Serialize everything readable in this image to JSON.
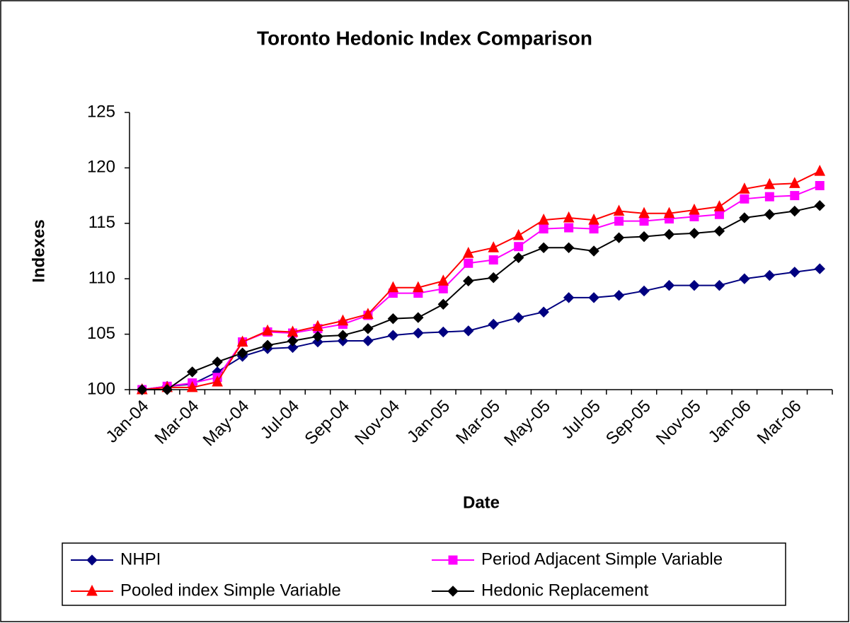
{
  "chart_data": {
    "type": "line",
    "title": "Toronto Hedonic Index Comparison",
    "x_label": "Date",
    "y_label": "Indexes",
    "categories": [
      "Jan-04",
      null,
      "Mar-04",
      null,
      "May-04",
      null,
      "Jul-04",
      null,
      "Sep-04",
      null,
      "Nov-04",
      null,
      "Jan-05",
      null,
      "Mar-05",
      null,
      "May-05",
      null,
      "Jul-05",
      null,
      "Sep-05",
      null,
      "Nov-05",
      null,
      "Jan-06",
      null,
      "Mar-06",
      null
    ],
    "ylim": [
      100,
      125
    ],
    "yticks": [
      100,
      105,
      110,
      115,
      120,
      125
    ],
    "grid": false,
    "legend": "bottom",
    "series": [
      {
        "name": "NHPI",
        "color": "#000080",
        "marker": "diamond",
        "values": [
          100,
          100.3,
          100.5,
          101.6,
          103,
          103.7,
          103.8,
          104.3,
          104.4,
          104.4,
          104.9,
          105.1,
          105.2,
          105.3,
          105.9,
          106.5,
          107,
          108.3,
          108.3,
          108.5,
          108.9,
          109.4,
          109.4,
          109.4,
          110,
          110.3,
          110.6,
          110.9
        ]
      },
      {
        "name": "Period Adjacent Simple Variable",
        "color": "#ff00ff",
        "marker": "square",
        "values": [
          100,
          100.3,
          100.6,
          101.1,
          104.3,
          105.2,
          105.1,
          105.5,
          105.9,
          106.7,
          108.7,
          108.7,
          109.1,
          111.4,
          111.7,
          112.9,
          114.5,
          114.6,
          114.5,
          115.2,
          115.2,
          115.4,
          115.6,
          115.8,
          117.2,
          117.4,
          117.5,
          118.4
        ]
      },
      {
        "name": "Pooled index Simple Variable",
        "color": "#ff0000",
        "marker": "triangle",
        "values": [
          100,
          100.2,
          100.2,
          100.7,
          104.3,
          105.3,
          105.2,
          105.7,
          106.2,
          106.8,
          109.2,
          109.2,
          109.8,
          112.3,
          112.8,
          113.9,
          115.3,
          115.5,
          115.3,
          116.1,
          115.9,
          115.9,
          116.2,
          116.5,
          118.1,
          118.5,
          118.6,
          119.7
        ]
      },
      {
        "name": "Hedonic Replacement",
        "color": "#000000",
        "marker": "diamond",
        "values": [
          100,
          100,
          101.6,
          102.5,
          103.3,
          104,
          104.4,
          104.8,
          104.9,
          105.5,
          106.4,
          106.5,
          107.7,
          109.8,
          110.1,
          111.9,
          112.8,
          112.8,
          112.5,
          113.7,
          113.8,
          114,
          114.1,
          114.3,
          115.5,
          115.8,
          116.1,
          116.6
        ]
      }
    ]
  }
}
